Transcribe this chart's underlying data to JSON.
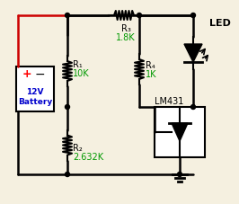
{
  "bg_color": "#f5f0e0",
  "wire_color": "#000000",
  "red_wire_color": "#cc0000",
  "component_color": "#000000",
  "label_color": "#0000cc",
  "value_color": "#009900",
  "led_label_color": "#000000",
  "title": "",
  "battery_label": "12V\nBattery",
  "r1_label": "R₁",
  "r1_value": "10K",
  "r2_label": "R₂",
  "r2_value": "2.632K",
  "r3_label": "R₃",
  "r3_value": "1.8K",
  "r4_label": "R₄",
  "r4_value": "1K",
  "lm_label": "LM431",
  "led_label": "LED"
}
